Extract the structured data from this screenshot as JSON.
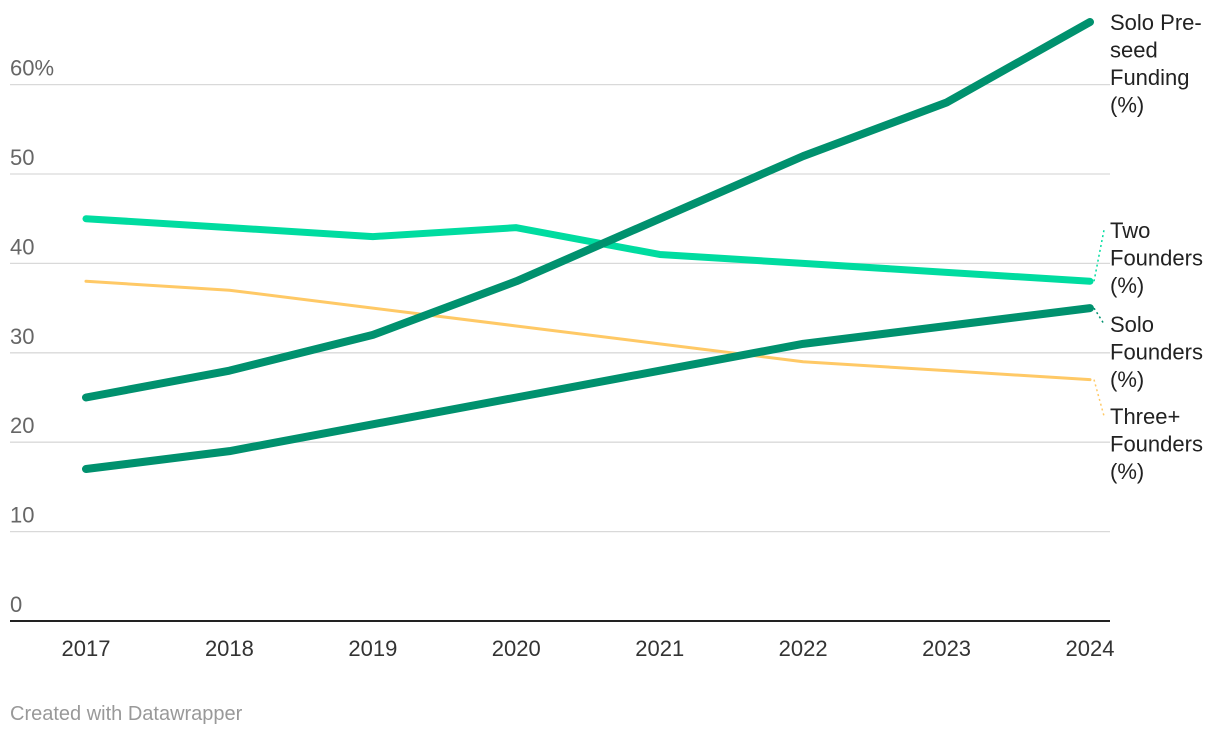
{
  "chart_data": {
    "type": "line",
    "x": [
      2017,
      2018,
      2019,
      2020,
      2021,
      2022,
      2023,
      2024
    ],
    "y_ticks": [
      {
        "value": 0,
        "label": "0"
      },
      {
        "value": 10,
        "label": "10"
      },
      {
        "value": 20,
        "label": "20"
      },
      {
        "value": 30,
        "label": "30"
      },
      {
        "value": 40,
        "label": "40"
      },
      {
        "value": 50,
        "label": "50"
      },
      {
        "value": 60,
        "label": "60%"
      }
    ],
    "ylim": [
      0,
      66
    ],
    "grid": true,
    "legend": "direct labels at line ends (right)",
    "series": [
      {
        "name": "Solo Pre-seed Funding (%)",
        "label_lines": [
          "Solo Pre-",
          "seed",
          "Funding",
          "(%)"
        ],
        "color": "#00916e",
        "values": [
          25,
          28,
          32,
          38,
          45,
          52,
          58,
          67
        ]
      },
      {
        "name": "Two Founders (%)",
        "label_lines": [
          "Two",
          "Founders",
          "(%)"
        ],
        "color": "#00dca0",
        "values": [
          45,
          44,
          43,
          44,
          41,
          40,
          39,
          38
        ]
      },
      {
        "name": "Solo Founders (%)",
        "label_lines": [
          "Solo",
          "Founders",
          "(%)"
        ],
        "color": "#00916e",
        "values": [
          17,
          19,
          22,
          25,
          28,
          31,
          33,
          35
        ]
      },
      {
        "name": "Three+ Founders (%)",
        "label_lines": [
          "Three+",
          "Founders",
          "(%)"
        ],
        "color": "#ffc966",
        "values": [
          38,
          37,
          35,
          33,
          31,
          29,
          28,
          27
        ]
      }
    ]
  },
  "footer": {
    "credit": "Created with Datawrapper"
  }
}
